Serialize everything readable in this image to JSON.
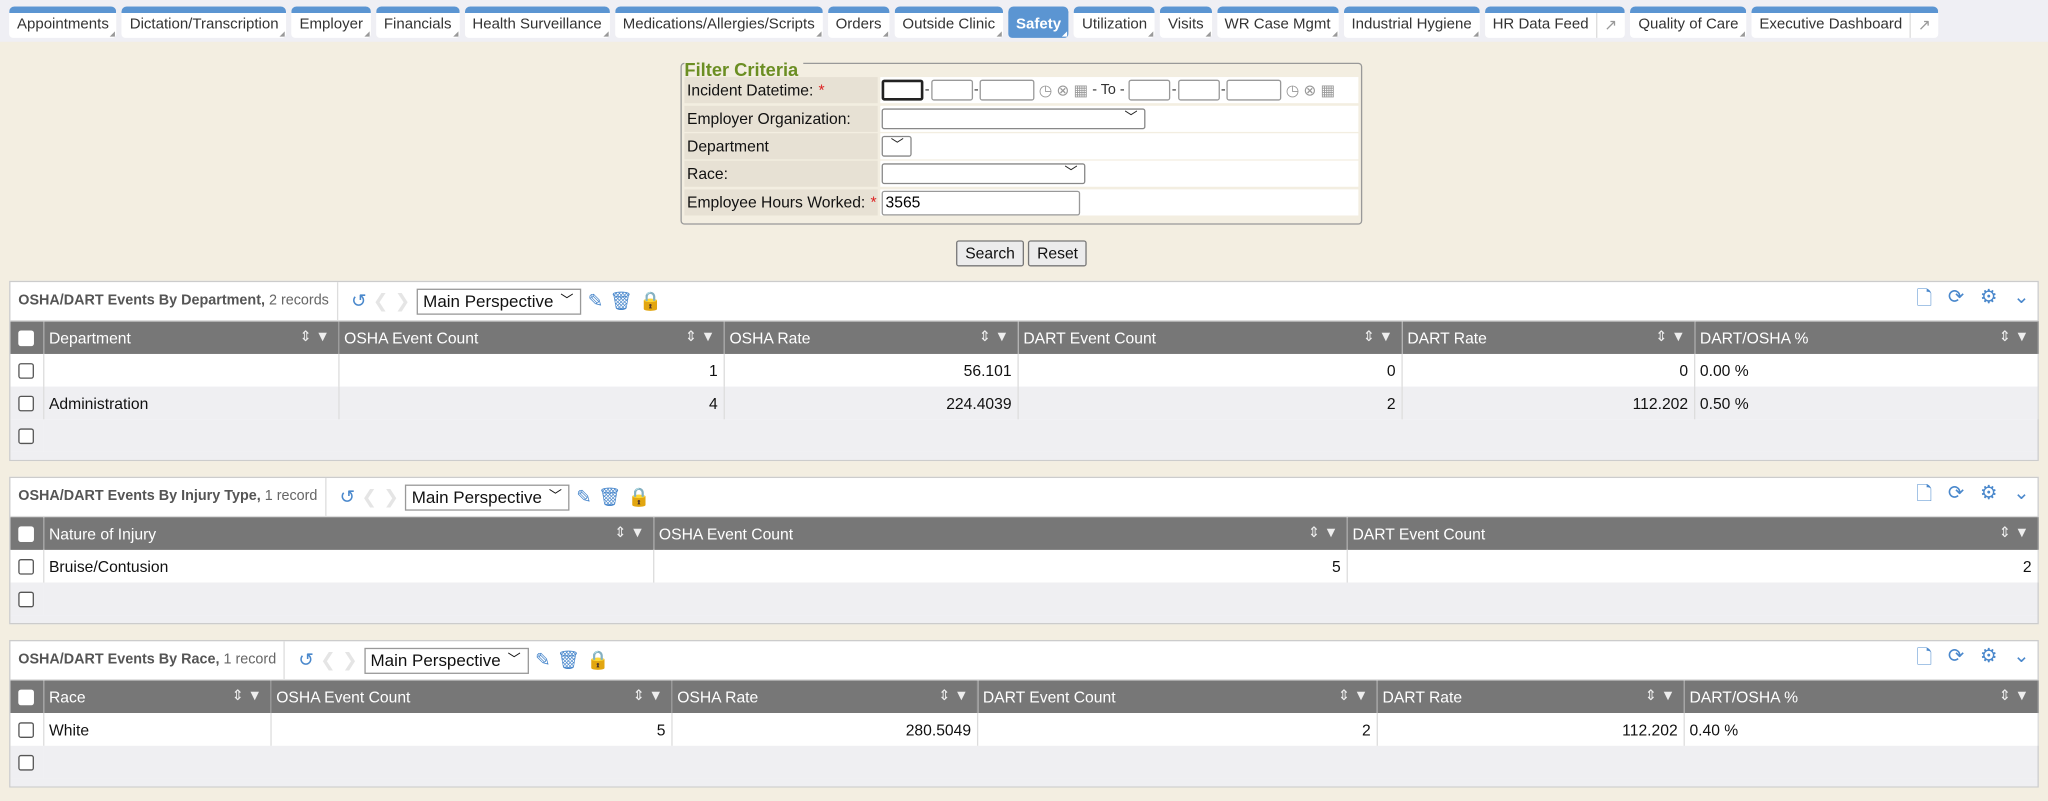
{
  "tabs": [
    {
      "label": "Appointments"
    },
    {
      "label": "Dictation/Transcription"
    },
    {
      "label": "Employer"
    },
    {
      "label": "Financials"
    },
    {
      "label": "Health Surveillance"
    },
    {
      "label": "Medications/Allergies/Scripts"
    },
    {
      "label": "Orders"
    },
    {
      "label": "Outside Clinic"
    },
    {
      "label": "Safety",
      "active": true
    },
    {
      "label": "Utilization"
    },
    {
      "label": "Visits"
    },
    {
      "label": "WR Case Mgmt"
    },
    {
      "label": "Industrial Hygiene"
    },
    {
      "label": "HR Data Feed",
      "external": true
    },
    {
      "label": "Quality of Care"
    },
    {
      "label": "Executive Dashboard",
      "external": true
    }
  ],
  "filter": {
    "title": "Filter Criteria",
    "incident_label": "Incident Datetime:",
    "to_label": "- To -",
    "employer_label": "Employer Organization:",
    "department_label": "Department",
    "race_label": "Race:",
    "hours_label": "Employee Hours Worked:",
    "hours_value": "3565",
    "required": "*",
    "search": "Search",
    "reset": "Reset"
  },
  "perspective": "Main Perspective",
  "accent": "#5b95d2",
  "panels": [
    {
      "title": "OSHA/DART Events By Department,",
      "count": "2 records",
      "columns": [
        "Department",
        "OSHA Event Count",
        "OSHA Rate",
        "DART Event Count",
        "DART Rate",
        "DART/OSHA %"
      ],
      "widths": [
        25,
        226,
        295,
        225,
        294,
        224,
        263
      ],
      "numeric": [
        false,
        true,
        true,
        true,
        true,
        false
      ],
      "rows": [
        [
          "",
          "1",
          "56.101",
          "0",
          "0",
          "0.00 %"
        ],
        [
          "Administration",
          "4",
          "224.4039",
          "2",
          "112.202",
          "0.50 %"
        ]
      ]
    },
    {
      "title": "OSHA/DART Events By Injury Type,",
      "count": "1 record",
      "columns": [
        "Nature of Injury",
        "OSHA Event Count",
        "DART Event Count"
      ],
      "widths": [
        25,
        467,
        531,
        529
      ],
      "numeric": [
        false,
        true,
        true
      ],
      "rows": [
        [
          "Bruise/Contusion",
          "5",
          "2"
        ]
      ]
    },
    {
      "title": "OSHA/DART Events By Race,",
      "count": "1 record",
      "columns": [
        "Race",
        "OSHA Event Count",
        "OSHA Rate",
        "DART Event Count",
        "DART Rate",
        "DART/OSHA %"
      ],
      "widths": [
        25,
        174,
        307,
        234,
        306,
        235,
        271
      ],
      "numeric": [
        false,
        true,
        true,
        true,
        true,
        false
      ],
      "rows": [
        [
          "White",
          "5",
          "280.5049",
          "2",
          "112.202",
          "0.40 %"
        ]
      ]
    }
  ]
}
